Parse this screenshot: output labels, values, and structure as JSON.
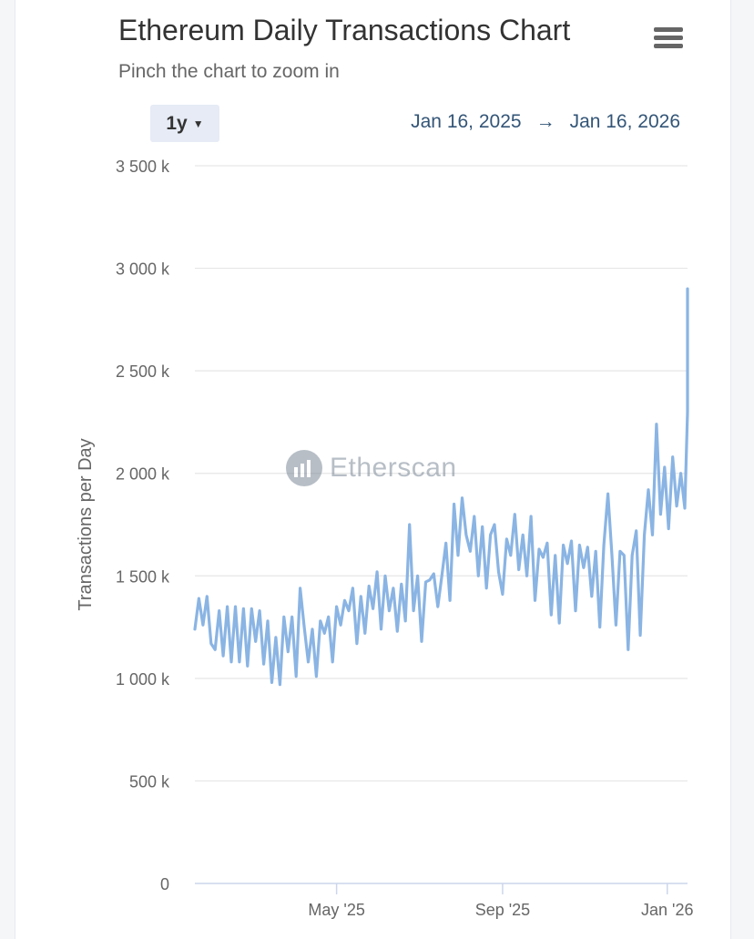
{
  "title": "Ethereum Daily Transactions Chart",
  "subtitle": "Pinch the chart to zoom in",
  "menu": {
    "icon": "hamburger-menu-icon"
  },
  "range_selector": {
    "label": "1y",
    "icon": "caret-down-icon"
  },
  "date_range": {
    "from": "Jan 16, 2025",
    "arrow": "→",
    "to": "Jan 16, 2026"
  },
  "watermark": {
    "text": "Etherscan",
    "icon": "etherscan-logo-icon"
  },
  "colors": {
    "line": "#8ab4e3",
    "grid": "#e6e6e6",
    "axis_text": "#666666",
    "date_text": "#335577"
  },
  "chart_data": {
    "type": "line",
    "title": "Ethereum Daily Transactions Chart",
    "xlabel": "",
    "ylabel": "Transactions per Day",
    "ylim": [
      0,
      3500000
    ],
    "xlim": [
      "2025-01-16",
      "2026-01-16"
    ],
    "grid": true,
    "y_ticks": [
      0,
      500000,
      1000000,
      1500000,
      2000000,
      2500000,
      3000000,
      3500000
    ],
    "y_tick_labels": [
      "0",
      "500 k",
      "1 000 k",
      "1 500 k",
      "2 000 k",
      "2 500 k",
      "3 000 k",
      "3 500 k"
    ],
    "x_ticks": [
      {
        "label": "May '25",
        "day": 105
      },
      {
        "label": "Sep '25",
        "day": 228
      },
      {
        "label": "Jan '26",
        "day": 350
      }
    ],
    "series": [
      {
        "name": "Transactions per Day",
        "start_date": "2025-01-16",
        "step_days": 3,
        "values": [
          1240000,
          1390000,
          1260000,
          1400000,
          1170000,
          1140000,
          1330000,
          1110000,
          1350000,
          1080000,
          1350000,
          1080000,
          1340000,
          1060000,
          1340000,
          1180000,
          1330000,
          1070000,
          1280000,
          980000,
          1200000,
          970000,
          1300000,
          1130000,
          1300000,
          1010000,
          1440000,
          1250000,
          1080000,
          1240000,
          1010000,
          1280000,
          1220000,
          1300000,
          1080000,
          1350000,
          1260000,
          1380000,
          1330000,
          1440000,
          1170000,
          1400000,
          1220000,
          1450000,
          1340000,
          1520000,
          1240000,
          1500000,
          1330000,
          1440000,
          1230000,
          1460000,
          1280000,
          1750000,
          1330000,
          1500000,
          1180000,
          1470000,
          1480000,
          1510000,
          1350000,
          1500000,
          1660000,
          1380000,
          1850000,
          1600000,
          1880000,
          1700000,
          1620000,
          1790000,
          1500000,
          1740000,
          1440000,
          1700000,
          1750000,
          1520000,
          1410000,
          1680000,
          1600000,
          1800000,
          1530000,
          1700000,
          1500000,
          1790000,
          1380000,
          1630000,
          1590000,
          1660000,
          1310000,
          1600000,
          1270000,
          1650000,
          1560000,
          1670000,
          1330000,
          1650000,
          1540000,
          1640000,
          1400000,
          1620000,
          1250000,
          1650000,
          1900000,
          1600000,
          1260000,
          1620000,
          1600000,
          1140000,
          1600000,
          1720000,
          1210000,
          1700000,
          1920000,
          1700000,
          2240000,
          1800000,
          2030000,
          1730000,
          2080000,
          1840000,
          2000000,
          1830000,
          2300000,
          2900000
        ]
      }
    ]
  }
}
